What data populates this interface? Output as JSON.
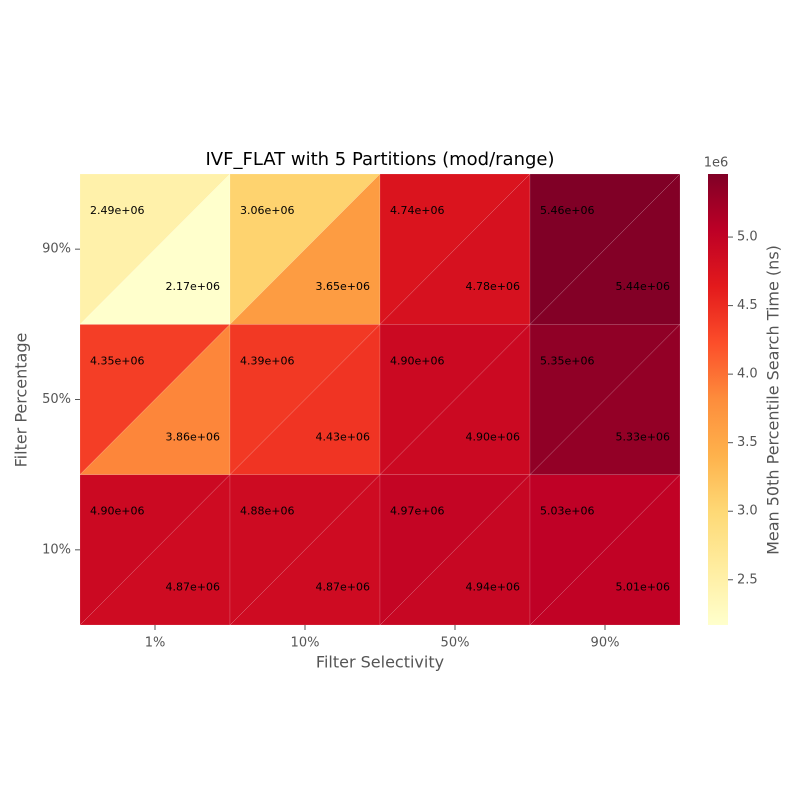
{
  "chart_data": {
    "type": "triangle-heatmap",
    "title": "IVF_FLAT with 5 Partitions (mod/range)",
    "x_label": "Filter Selectivity",
    "y_label": "Filter Percentage",
    "x_categories": [
      "1%",
      "10%",
      "50%",
      "90%"
    ],
    "y_categories": [
      "10%",
      "50%",
      "90%"
    ],
    "upper": {
      "values": [
        [
          4900000,
          4880000,
          4970000,
          5030000
        ],
        [
          4350000,
          4390000,
          4900000,
          5350000
        ],
        [
          2490000,
          3060000,
          4740000,
          5460000
        ]
      ],
      "value_labels": [
        [
          "4.90e+06",
          "4.88e+06",
          "4.97e+06",
          "5.03e+06"
        ],
        [
          "4.35e+06",
          "4.39e+06",
          "4.90e+06",
          "5.35e+06"
        ],
        [
          "2.49e+06",
          "3.06e+06",
          "4.74e+06",
          "5.46e+06"
        ]
      ]
    },
    "lower": {
      "values": [
        [
          4870000,
          4870000,
          4940000,
          5010000
        ],
        [
          3860000,
          4430000,
          4900000,
          5330000
        ],
        [
          2170000,
          3650000,
          4780000,
          5440000
        ]
      ],
      "value_labels": [
        [
          "4.87e+06",
          "4.87e+06",
          "4.94e+06",
          "5.01e+06"
        ],
        [
          "3.86e+06",
          "4.43e+06",
          "4.90e+06",
          "5.33e+06"
        ],
        [
          "2.17e+06",
          "3.65e+06",
          "4.78e+06",
          "5.44e+06"
        ]
      ]
    },
    "colorbar_label": "Mean 50th Percentile Search Time (ns)",
    "colorbar_offset_label": "1e6",
    "clim": [
      2170000,
      5460000
    ],
    "cticks": [
      {
        "value": 2500000,
        "label": "2.5"
      },
      {
        "value": 3000000,
        "label": "3.0"
      },
      {
        "value": 3500000,
        "label": "3.5"
      },
      {
        "value": 4000000,
        "label": "4.0"
      },
      {
        "value": 4500000,
        "label": "4.5"
      },
      {
        "value": 5000000,
        "label": "5.0"
      }
    ],
    "colormap": [
      "#ffffcc",
      "#ffeda0",
      "#fed976",
      "#feb24c",
      "#fd8d3c",
      "#fc4e2a",
      "#e31a1c",
      "#bd0026",
      "#800026"
    ]
  }
}
